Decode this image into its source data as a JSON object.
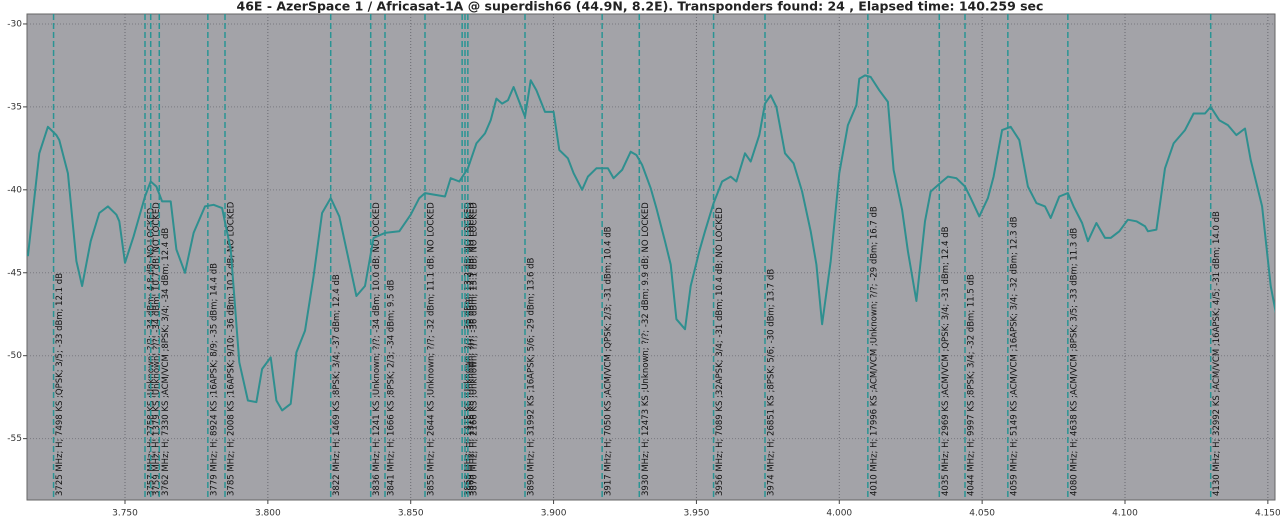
{
  "chart_data": {
    "type": "line",
    "title": "46E - AzerSpace 1 / Africasat-1A @ superdish66 (44.9N, 8.2E). Transponders found: 24 , Elapsed time: 140.259 sec",
    "color": "#2f8f8f",
    "marker_color": "#2a9494",
    "grid": true,
    "xlim": [
      3.7157,
      4.1525
    ],
    "ylim": [
      -58.7,
      -29.4
    ],
    "xticks": [
      {
        "value": 3.75,
        "label": "3.750"
      },
      {
        "value": 3.8,
        "label": "3.800"
      },
      {
        "value": 3.85,
        "label": "3.850"
      },
      {
        "value": 3.9,
        "label": "3.900"
      },
      {
        "value": 3.95,
        "label": "3.950"
      },
      {
        "value": 4.0,
        "label": "4.000"
      },
      {
        "value": 4.05,
        "label": "4.050"
      },
      {
        "value": 4.1,
        "label": "4.100"
      },
      {
        "value": 4.15,
        "label": "4.150"
      }
    ],
    "yticks": [
      -30,
      -35,
      -40,
      -45,
      -50,
      -55
    ],
    "x": [
      3.716,
      3.72,
      3.723,
      3.726,
      3.727,
      3.73,
      3.733,
      3.735,
      3.738,
      3.741,
      3.744,
      3.747,
      3.748,
      3.75,
      3.753,
      3.755,
      3.757,
      3.759,
      3.761,
      3.763,
      3.766,
      3.768,
      3.771,
      3.774,
      3.778,
      3.781,
      3.784,
      3.787,
      3.79,
      3.793,
      3.796,
      3.798,
      3.801,
      3.803,
      3.805,
      3.808,
      3.81,
      3.813,
      3.816,
      3.819,
      3.822,
      3.825,
      3.828,
      3.831,
      3.834,
      3.837,
      3.841,
      3.846,
      3.85,
      3.853,
      3.855,
      3.862,
      3.864,
      3.867,
      3.87,
      3.873,
      3.876,
      3.878,
      3.88,
      3.882,
      3.884,
      3.886,
      3.888,
      3.89,
      3.892,
      3.894,
      3.897,
      3.9,
      3.902,
      3.905,
      3.907,
      3.91,
      3.912,
      3.915,
      3.919,
      3.921,
      3.924,
      3.927,
      3.929,
      3.931,
      3.934,
      3.936,
      3.939,
      3.941,
      3.943,
      3.946,
      3.948,
      3.951,
      3.953,
      3.956,
      3.959,
      3.962,
      3.964,
      3.967,
      3.969,
      3.972,
      3.974,
      3.976,
      3.978,
      3.981,
      3.984,
      3.987,
      3.99,
      3.992,
      3.994,
      3.997,
      4.0,
      4.003,
      4.006,
      4.007,
      4.009,
      4.011,
      4.014,
      4.017,
      4.019,
      4.022,
      4.024,
      4.027,
      4.03,
      4.032,
      4.036,
      4.038,
      4.041,
      4.044,
      4.046,
      4.049,
      4.052,
      4.054,
      4.057,
      4.06,
      4.063,
      4.066,
      4.069,
      4.072,
      4.074,
      4.077,
      4.08,
      4.082,
      4.085,
      4.087,
      4.09,
      4.093,
      4.095,
      4.098,
      4.101,
      4.104,
      4.107,
      4.108,
      4.111,
      4.114,
      4.117,
      4.121,
      4.124,
      4.128,
      4.13,
      4.133,
      4.136,
      4.139,
      4.142,
      4.144,
      4.148,
      4.151,
      4.154
    ],
    "values": [
      -44.0,
      -37.8,
      -36.2,
      -36.7,
      -37.0,
      -39.0,
      -44.3,
      -45.8,
      -43.1,
      -41.4,
      -41.0,
      -41.5,
      -41.9,
      -44.4,
      -42.8,
      -41.6,
      -40.4,
      -39.5,
      -39.8,
      -40.7,
      -40.7,
      -43.6,
      -45.0,
      -42.6,
      -41.0,
      -40.9,
      -41.1,
      -43.6,
      -50.4,
      -52.7,
      -52.8,
      -50.8,
      -50.1,
      -52.7,
      -53.3,
      -52.9,
      -49.8,
      -48.5,
      -45.2,
      -41.4,
      -40.5,
      -41.6,
      -44.0,
      -46.4,
      -45.8,
      -42.9,
      -42.6,
      -42.5,
      -41.5,
      -40.5,
      -40.2,
      -40.4,
      -39.3,
      -39.5,
      -38.7,
      -37.2,
      -36.6,
      -35.8,
      -34.5,
      -34.8,
      -34.6,
      -33.8,
      -34.7,
      -35.6,
      -33.4,
      -34.0,
      -35.3,
      -35.3,
      -37.6,
      -38.1,
      -39.0,
      -40.0,
      -39.2,
      -38.7,
      -38.7,
      -39.3,
      -38.8,
      -37.7,
      -37.9,
      -38.5,
      -39.9,
      -41.1,
      -43.1,
      -44.5,
      -47.8,
      -48.4,
      -45.8,
      -43.7,
      -42.5,
      -40.8,
      -39.5,
      -39.2,
      -39.5,
      -37.8,
      -38.3,
      -36.7,
      -34.8,
      -34.3,
      -35.0,
      -37.8,
      -38.4,
      -40.1,
      -42.5,
      -44.5,
      -48.1,
      -44.3,
      -39.0,
      -36.1,
      -34.9,
      -33.3,
      -33.1,
      -33.2,
      -34.0,
      -34.7,
      -38.8,
      -41.2,
      -43.7,
      -46.7,
      -41.9,
      -40.1,
      -39.5,
      -39.2,
      -39.3,
      -39.8,
      -40.5,
      -41.6,
      -40.5,
      -39.2,
      -36.4,
      -36.2,
      -37.0,
      -39.8,
      -40.8,
      -41.0,
      -41.7,
      -40.4,
      -40.2,
      -41.0,
      -42.0,
      -43.1,
      -42.0,
      -42.9,
      -42.9,
      -42.5,
      -41.8,
      -41.9,
      -42.2,
      -42.5,
      -42.4,
      -38.7,
      -37.2,
      -36.4,
      -35.4,
      -35.4,
      -35.0,
      -35.8,
      -36.1,
      -36.7,
      -36.3,
      -38.2,
      -41.0,
      -45.8,
      -48.5
    ],
    "markers": [
      {
        "x": 3.725,
        "label": "3725 MHz; H; 7498 KS ;QPSK; 3/5; -33 dBm; 12.1 dB"
      },
      {
        "x": 3.757,
        "label": "3757 MHz; H; 2758 KS ;Unknown; ?/?; -34 dBm; 4.8 dB; NO LOCKED"
      },
      {
        "x": 3.759,
        "label": "3759 MHz; H; 1379 KS ;Unknown; ?/?; -34 dBm; 10.7 dB; NO LOCKED"
      },
      {
        "x": 3.762,
        "label": "3762 MHz; H; 7330 KS ;ACM/VCM ;8PSK; 3/4; -34 dBm; 12.4 dB"
      },
      {
        "x": 3.779,
        "label": "3779 MHz; H; 8924 KS ;16APSK; 8/9; -35 dBm; 14.4 dB"
      },
      {
        "x": 3.785,
        "label": "3785 MHz; H; 2008 KS ;16APSK; 9/10; -36 dBm; 10.2 dB; NO LOCKED"
      },
      {
        "x": 3.822,
        "label": "3822 MHz; H; 1469 KS ;8PSK; 3/4; -37 dBm; 12.4 dB"
      },
      {
        "x": 3.836,
        "label": "3836 MHz; H; 1241 KS ;Unknown; ?/?; -34 dBm; 10.0 dB; NO LOCKED"
      },
      {
        "x": 3.841,
        "label": "3841 MHz; H; 1666 KS ;8PSK; 2/3; -34 dBm; 9.5 dB"
      },
      {
        "x": 3.855,
        "label": "3855 MHz; H; 2644 KS ;Unknown; ?/?; -32 dBm; 11.1 dB; NO LOCKED"
      },
      {
        "x": 3.868,
        "label": "3868 MHz; H; 1415 KS ;Unknown; ?/?; -36 dBm; 13.2 dB; NO LOCKED"
      },
      {
        "x": 3.869,
        "label": "3869 MHz; H; 1318 KS ;Unknown; ?/?; -36 dBm; 12.9 dB; NO LOCKED"
      },
      {
        "x": 3.87,
        "label": "3870 MHz; H; 2166 KS ;Unknown; ?/?; -36 dBm; 13.1 dB; NO LOCKED"
      },
      {
        "x": 3.89,
        "label": "3890 MHz; H; 31992 KS ;16APSK; 5/6; -29 dBm; 13.6 dB"
      },
      {
        "x": 3.917,
        "label": "3917 MHz; H; 7050 KS ;ACM/VCM ;QPSK; 2/3; -31 dBm; 10.4 dB"
      },
      {
        "x": 3.93,
        "label": "3930 MHz; H; 12473 KS ;Unknown; ?/?; -32 dBm; 9.9 dB; NO LOCKED"
      },
      {
        "x": 3.956,
        "label": "3956 MHz; H; 7089 KS ;32APSK; 3/4; -31 dBm; 10.4 dB; NO LOCKED"
      },
      {
        "x": 3.974,
        "label": "3974 MHz; H; 26851 KS ;8PSK; 5/6; -30 dBm; 13.7 dB"
      },
      {
        "x": 4.01,
        "label": "4010 MHz; H; 17996 KS ;ACM/VCM ;Unknown; ?/?; -29 dBm; 16.7 dB"
      },
      {
        "x": 4.035,
        "label": "4035 MHz; H; 2969 KS ;ACM/VCM ;QPSK; 3/4; -31 dBm; 12.4 dB"
      },
      {
        "x": 4.044,
        "label": "4044 MHz; H; 9997 KS ;8PSK; 3/4; -32 dBm; 11.5 dB"
      },
      {
        "x": 4.059,
        "label": "4059 MHz; H; 5149 KS ;ACM/VCM ;16APSK; 3/4; -32 dBm; 12.3 dB"
      },
      {
        "x": 4.08,
        "label": "4080 MHz; H; 4638 KS ;ACM/VCM ;8PSK; 3/5; -33 dBm; 11.3 dB"
      },
      {
        "x": 4.13,
        "label": "4130 MHz; H; 32992 KS ;ACM/VCM ;16APSK; 4/5; -31 dBm; 14.0 dB"
      }
    ]
  }
}
